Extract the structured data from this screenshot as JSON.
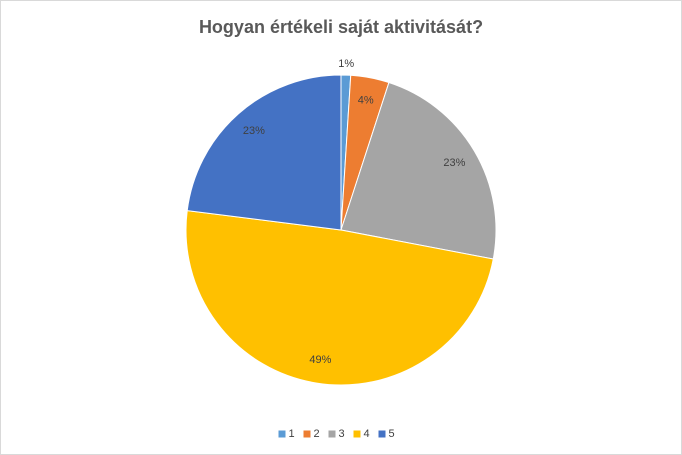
{
  "chart_data": {
    "type": "pie",
    "title": "Hogyan értékeli saját aktivitását?",
    "categories": [
      "1",
      "2",
      "3",
      "4",
      "5"
    ],
    "values": [
      1,
      4,
      23,
      49,
      23
    ],
    "value_labels": [
      "1%",
      "4%",
      "23%",
      "49%",
      "23%"
    ],
    "colors": [
      "#5b9bd5",
      "#ed7d31",
      "#a5a5a5",
      "#ffc000",
      "#4472c4"
    ],
    "legend": "bottom"
  }
}
